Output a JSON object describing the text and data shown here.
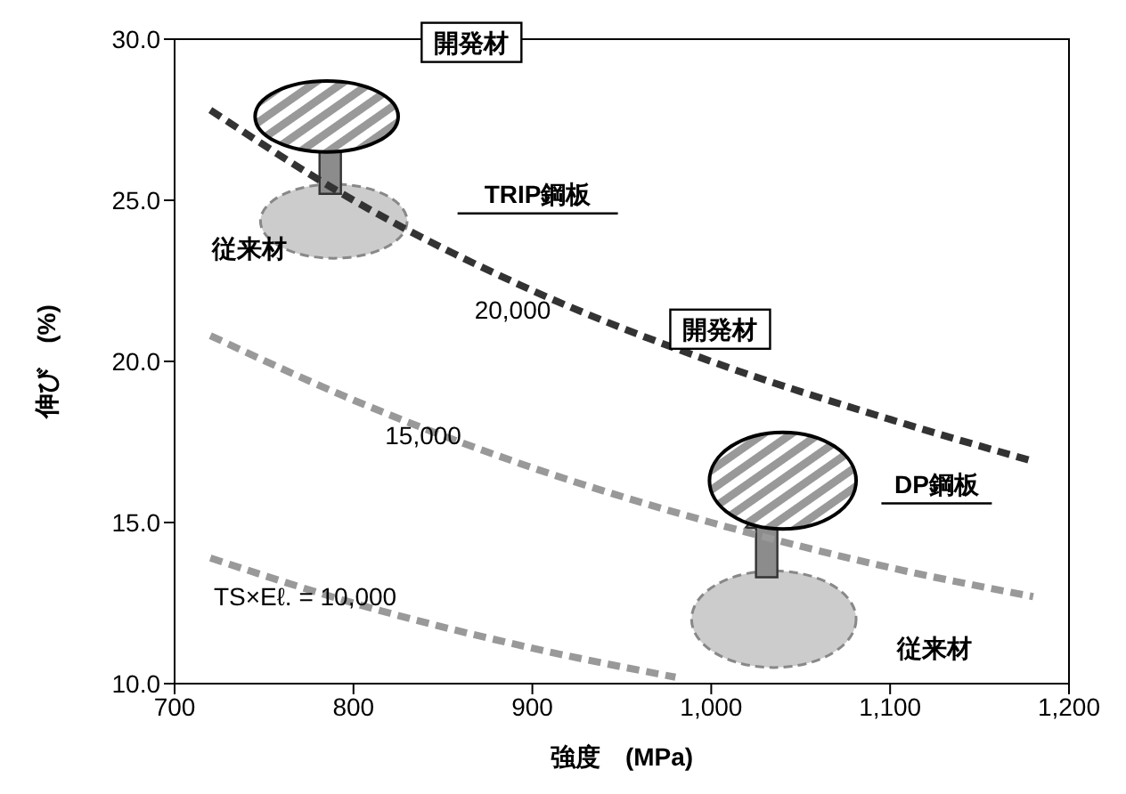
{
  "chart_data": {
    "type": "line",
    "xlabel": "強度　(MPa)",
    "ylabel": "伸び　(%)",
    "xlim": [
      700,
      1200
    ],
    "xticks": [
      700,
      800,
      900,
      {
        "value": 1000,
        "label": "1,000"
      },
      {
        "value": 1100,
        "label": "1,100"
      },
      {
        "value": 1200,
        "label": "1,200"
      }
    ],
    "ylim": [
      10,
      30
    ],
    "yticks": [
      {
        "value": 10,
        "label": "10.0"
      },
      {
        "value": 15,
        "label": "15.0"
      },
      {
        "value": 20,
        "label": "20.0"
      },
      {
        "value": 25,
        "label": "25.0"
      },
      {
        "value": 30,
        "label": "30.0"
      }
    ],
    "grid": false,
    "line_style": "dashed",
    "series": [
      {
        "color": "#333333",
        "x": [
          720,
          800,
          900,
          1000,
          1100,
          1180
        ],
        "values": [
          27.8,
          25.0,
          22.2,
          20.0,
          18.2,
          16.9
        ]
      },
      {
        "color": "#999999",
        "x": [
          720,
          800,
          900,
          1000,
          1100,
          1180
        ],
        "values": [
          20.8,
          18.8,
          16.7,
          15.0,
          13.6,
          12.7
        ]
      },
      {
        "color": "#999999",
        "x": [
          720,
          800,
          900,
          980
        ],
        "values": [
          13.9,
          12.5,
          11.1,
          10.2
        ]
      }
    ],
    "annotations": [
      "開発材",
      "開発材",
      "TRIP鋼板",
      "DP鋼板",
      "従来材",
      "従来材",
      "20,000",
      {
        "text": "15,000",
        "x": 839,
        "y": 17.7
      },
      {
        "text": "TS×Eℓ. = 10,000",
        "x": 773,
        "y": 12.7
      }
    ]
  }
}
